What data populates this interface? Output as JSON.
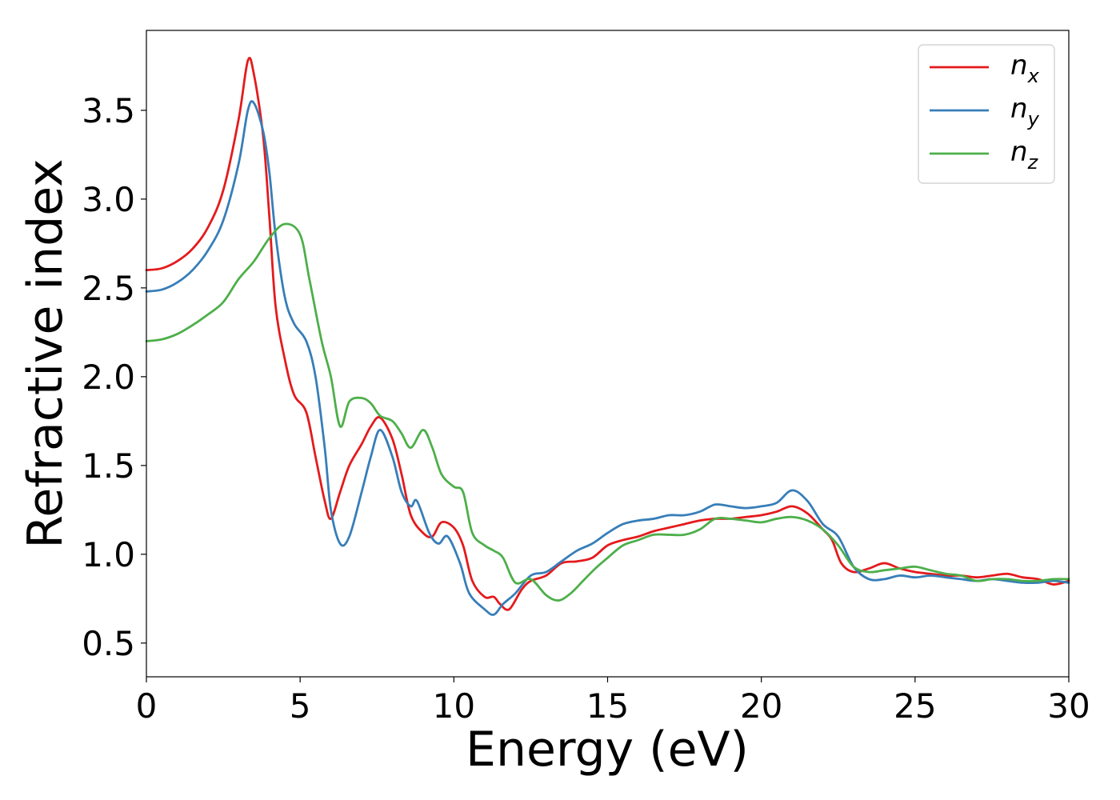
{
  "chart_data": {
    "type": "line",
    "xlabel": "Energy (eV)",
    "ylabel": "Refractive index",
    "xlim": [
      0,
      30
    ],
    "ylim": [
      0.31,
      3.95
    ],
    "xticks": [
      0,
      5,
      10,
      15,
      20,
      25,
      30
    ],
    "xtick_labels": [
      "0",
      "5",
      "10",
      "15",
      "20",
      "25",
      "30"
    ],
    "yticks": [
      0.5,
      1.0,
      1.5,
      2.0,
      2.5,
      3.0,
      3.5
    ],
    "ytick_labels": [
      "0.5",
      "1.0",
      "1.5",
      "2.0",
      "2.5",
      "3.0",
      "3.5"
    ],
    "grid": false,
    "legend_position": "top-right",
    "series": [
      {
        "name": "n",
        "subscript": "x",
        "color": "#e41a1c",
        "points": [
          [
            0,
            2.6
          ],
          [
            0.5,
            2.61
          ],
          [
            1.0,
            2.65
          ],
          [
            1.5,
            2.72
          ],
          [
            2.0,
            2.84
          ],
          [
            2.5,
            3.05
          ],
          [
            3.0,
            3.45
          ],
          [
            3.3,
            3.78
          ],
          [
            3.5,
            3.7
          ],
          [
            3.8,
            3.35
          ],
          [
            4.0,
            2.9
          ],
          [
            4.2,
            2.4
          ],
          [
            4.5,
            2.1
          ],
          [
            4.8,
            1.9
          ],
          [
            5.2,
            1.8
          ],
          [
            5.5,
            1.55
          ],
          [
            5.8,
            1.3
          ],
          [
            6.0,
            1.2
          ],
          [
            6.3,
            1.35
          ],
          [
            6.6,
            1.5
          ],
          [
            7.0,
            1.62
          ],
          [
            7.3,
            1.72
          ],
          [
            7.6,
            1.77
          ],
          [
            8.0,
            1.65
          ],
          [
            8.3,
            1.45
          ],
          [
            8.6,
            1.22
          ],
          [
            9.0,
            1.12
          ],
          [
            9.3,
            1.1
          ],
          [
            9.6,
            1.18
          ],
          [
            10.0,
            1.15
          ],
          [
            10.3,
            1.05
          ],
          [
            10.6,
            0.85
          ],
          [
            11.0,
            0.76
          ],
          [
            11.3,
            0.76
          ],
          [
            11.5,
            0.72
          ],
          [
            11.8,
            0.69
          ],
          [
            12.2,
            0.8
          ],
          [
            12.5,
            0.85
          ],
          [
            13.0,
            0.88
          ],
          [
            13.5,
            0.95
          ],
          [
            14.0,
            0.96
          ],
          [
            14.5,
            0.98
          ],
          [
            15.0,
            1.05
          ],
          [
            15.5,
            1.08
          ],
          [
            16.0,
            1.1
          ],
          [
            16.5,
            1.13
          ],
          [
            17.0,
            1.15
          ],
          [
            17.5,
            1.17
          ],
          [
            18.0,
            1.19
          ],
          [
            18.5,
            1.2
          ],
          [
            19.0,
            1.2
          ],
          [
            19.5,
            1.21
          ],
          [
            20.0,
            1.22
          ],
          [
            20.5,
            1.24
          ],
          [
            21.0,
            1.27
          ],
          [
            21.5,
            1.23
          ],
          [
            22.0,
            1.14
          ],
          [
            22.3,
            1.08
          ],
          [
            22.6,
            0.95
          ],
          [
            23.0,
            0.9
          ],
          [
            23.5,
            0.92
          ],
          [
            24.0,
            0.95
          ],
          [
            24.5,
            0.92
          ],
          [
            25.0,
            0.9
          ],
          [
            25.5,
            0.89
          ],
          [
            26.0,
            0.88
          ],
          [
            26.5,
            0.88
          ],
          [
            27.0,
            0.87
          ],
          [
            27.5,
            0.88
          ],
          [
            28.0,
            0.89
          ],
          [
            28.5,
            0.87
          ],
          [
            29.0,
            0.86
          ],
          [
            29.5,
            0.83
          ],
          [
            30.0,
            0.85
          ]
        ]
      },
      {
        "name": "n",
        "subscript": "y",
        "color": "#377eb8",
        "points": [
          [
            0,
            2.48
          ],
          [
            0.5,
            2.49
          ],
          [
            1.0,
            2.53
          ],
          [
            1.5,
            2.6
          ],
          [
            2.0,
            2.71
          ],
          [
            2.5,
            2.88
          ],
          [
            3.0,
            3.2
          ],
          [
            3.3,
            3.5
          ],
          [
            3.5,
            3.54
          ],
          [
            3.8,
            3.38
          ],
          [
            4.0,
            3.15
          ],
          [
            4.2,
            2.8
          ],
          [
            4.5,
            2.45
          ],
          [
            4.8,
            2.3
          ],
          [
            5.2,
            2.2
          ],
          [
            5.5,
            2.0
          ],
          [
            5.8,
            1.6
          ],
          [
            6.0,
            1.25
          ],
          [
            6.3,
            1.06
          ],
          [
            6.6,
            1.1
          ],
          [
            7.0,
            1.35
          ],
          [
            7.3,
            1.55
          ],
          [
            7.6,
            1.7
          ],
          [
            8.0,
            1.55
          ],
          [
            8.3,
            1.35
          ],
          [
            8.6,
            1.27
          ],
          [
            8.8,
            1.3
          ],
          [
            9.2,
            1.12
          ],
          [
            9.5,
            1.06
          ],
          [
            9.8,
            1.1
          ],
          [
            10.2,
            0.95
          ],
          [
            10.5,
            0.78
          ],
          [
            11.0,
            0.69
          ],
          [
            11.3,
            0.66
          ],
          [
            11.6,
            0.72
          ],
          [
            12.0,
            0.78
          ],
          [
            12.5,
            0.88
          ],
          [
            13.0,
            0.9
          ],
          [
            13.5,
            0.96
          ],
          [
            14.0,
            1.02
          ],
          [
            14.5,
            1.06
          ],
          [
            15.0,
            1.12
          ],
          [
            15.5,
            1.17
          ],
          [
            16.0,
            1.19
          ],
          [
            16.5,
            1.2
          ],
          [
            17.0,
            1.22
          ],
          [
            17.5,
            1.22
          ],
          [
            18.0,
            1.24
          ],
          [
            18.5,
            1.28
          ],
          [
            19.0,
            1.27
          ],
          [
            19.5,
            1.26
          ],
          [
            20.0,
            1.27
          ],
          [
            20.5,
            1.29
          ],
          [
            21.0,
            1.36
          ],
          [
            21.5,
            1.3
          ],
          [
            22.0,
            1.17
          ],
          [
            22.5,
            1.1
          ],
          [
            23.0,
            0.93
          ],
          [
            23.5,
            0.86
          ],
          [
            24.0,
            0.86
          ],
          [
            24.5,
            0.88
          ],
          [
            25.0,
            0.87
          ],
          [
            25.5,
            0.88
          ],
          [
            26.0,
            0.87
          ],
          [
            26.5,
            0.86
          ],
          [
            27.0,
            0.85
          ],
          [
            27.5,
            0.86
          ],
          [
            28.0,
            0.85
          ],
          [
            28.5,
            0.84
          ],
          [
            29.0,
            0.84
          ],
          [
            29.5,
            0.85
          ],
          [
            30.0,
            0.84
          ]
        ]
      },
      {
        "name": "n",
        "subscript": "z",
        "color": "#4daf4a",
        "points": [
          [
            0,
            2.2
          ],
          [
            0.5,
            2.21
          ],
          [
            1.0,
            2.24
          ],
          [
            1.5,
            2.29
          ],
          [
            2.0,
            2.35
          ],
          [
            2.5,
            2.42
          ],
          [
            3.0,
            2.55
          ],
          [
            3.5,
            2.65
          ],
          [
            4.0,
            2.78
          ],
          [
            4.5,
            2.86
          ],
          [
            5.0,
            2.8
          ],
          [
            5.3,
            2.55
          ],
          [
            5.7,
            2.2
          ],
          [
            6.0,
            2.0
          ],
          [
            6.3,
            1.72
          ],
          [
            6.6,
            1.86
          ],
          [
            7.0,
            1.88
          ],
          [
            7.3,
            1.85
          ],
          [
            7.6,
            1.78
          ],
          [
            8.0,
            1.75
          ],
          [
            8.3,
            1.68
          ],
          [
            8.6,
            1.6
          ],
          [
            9.0,
            1.7
          ],
          [
            9.3,
            1.6
          ],
          [
            9.6,
            1.45
          ],
          [
            10.0,
            1.38
          ],
          [
            10.3,
            1.35
          ],
          [
            10.6,
            1.12
          ],
          [
            11.0,
            1.05
          ],
          [
            11.3,
            1.02
          ],
          [
            11.6,
            0.98
          ],
          [
            12.0,
            0.84
          ],
          [
            12.5,
            0.86
          ],
          [
            13.0,
            0.77
          ],
          [
            13.4,
            0.74
          ],
          [
            13.8,
            0.78
          ],
          [
            14.2,
            0.85
          ],
          [
            14.6,
            0.92
          ],
          [
            15.0,
            0.98
          ],
          [
            15.5,
            1.05
          ],
          [
            16.0,
            1.08
          ],
          [
            16.5,
            1.11
          ],
          [
            17.0,
            1.11
          ],
          [
            17.5,
            1.11
          ],
          [
            18.0,
            1.14
          ],
          [
            18.5,
            1.2
          ],
          [
            19.0,
            1.2
          ],
          [
            19.5,
            1.19
          ],
          [
            20.0,
            1.18
          ],
          [
            20.5,
            1.2
          ],
          [
            21.0,
            1.21
          ],
          [
            21.5,
            1.19
          ],
          [
            22.0,
            1.14
          ],
          [
            22.5,
            1.05
          ],
          [
            23.0,
            0.93
          ],
          [
            23.5,
            0.9
          ],
          [
            24.0,
            0.91
          ],
          [
            24.5,
            0.92
          ],
          [
            25.0,
            0.93
          ],
          [
            25.5,
            0.91
          ],
          [
            26.0,
            0.89
          ],
          [
            26.5,
            0.88
          ],
          [
            27.0,
            0.85
          ],
          [
            27.5,
            0.86
          ],
          [
            28.0,
            0.86
          ],
          [
            28.5,
            0.85
          ],
          [
            29.0,
            0.85
          ],
          [
            29.5,
            0.86
          ],
          [
            30.0,
            0.86
          ]
        ]
      }
    ]
  }
}
